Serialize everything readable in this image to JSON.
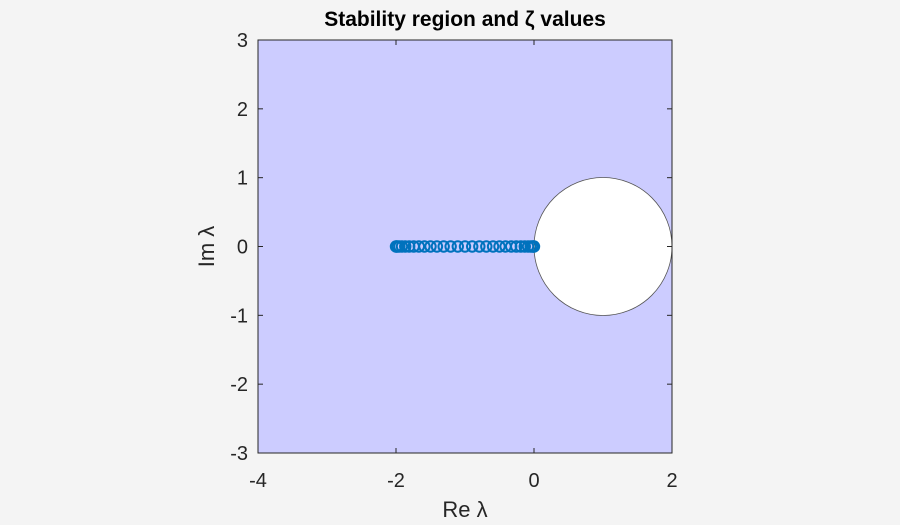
{
  "chart_data": {
    "type": "scatter",
    "title": "Stability region and ζ values",
    "xlabel": "Re λ",
    "ylabel": "Im λ",
    "xlim": [
      -4,
      2
    ],
    "ylim": [
      -3,
      3
    ],
    "xticks": [
      "-4",
      "-2",
      "0",
      "2"
    ],
    "yticks": [
      "3",
      "2",
      "1",
      "0",
      "-1",
      "-2",
      "-3"
    ],
    "grid": false,
    "legend": null,
    "region": {
      "name": "stability region",
      "fill": "#ccccff",
      "description": "Entire plane shaded except the unit disk centered at (1,0)",
      "excluded_disk": {
        "center": [
          1,
          0
        ],
        "radius": 1,
        "fill": "#ffffff"
      }
    },
    "series": [
      {
        "name": "ζ values",
        "marker": "circle",
        "color": "#0072bd",
        "x": [
          -2.0,
          -1.9945,
          -1.9781,
          -1.9511,
          -1.9135,
          -1.866,
          -1.809,
          -1.7431,
          -1.6691,
          -1.5878,
          -1.5,
          -1.4067,
          -1.309,
          -1.2079,
          -1.1045,
          -1.0,
          -0.8955,
          -0.7921,
          -0.691,
          -0.5933,
          -0.5,
          -0.4122,
          -0.3309,
          -0.2569,
          -0.191,
          -0.134,
          -0.0865,
          -0.0489,
          -0.0219,
          -0.0055,
          0.0
        ],
        "y": [
          0,
          0,
          0,
          0,
          0,
          0,
          0,
          0,
          0,
          0,
          0,
          0,
          0,
          0,
          0,
          0,
          0,
          0,
          0,
          0,
          0,
          0,
          0,
          0,
          0,
          0,
          0,
          0,
          0,
          0,
          0
        ]
      }
    ]
  }
}
